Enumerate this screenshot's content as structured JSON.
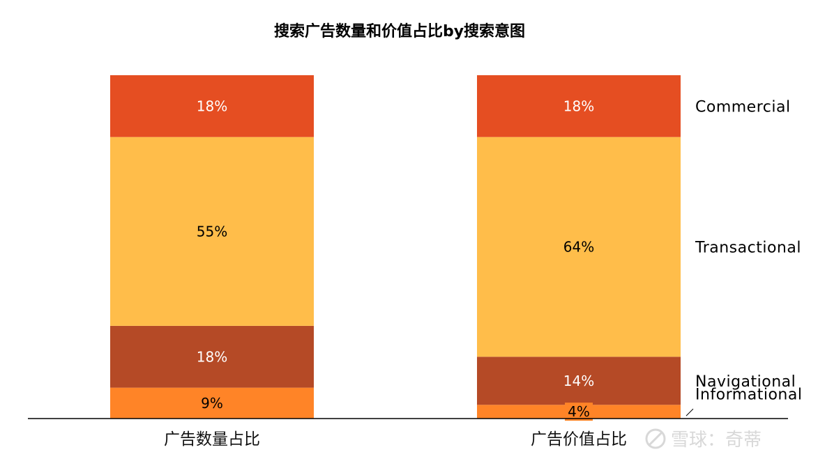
{
  "chart_data": {
    "type": "bar",
    "stacked": true,
    "normalized": true,
    "title": "搜索广告数量和价值占比by搜索意图",
    "categories": [
      "广告数量占比",
      "广告价值占比"
    ],
    "series": [
      {
        "name": "Informational",
        "values": [
          9,
          4
        ],
        "labels": [
          "9%",
          "4%"
        ],
        "color": "#FF8427",
        "label_color": "#000000"
      },
      {
        "name": "Navigational",
        "values": [
          18,
          14
        ],
        "labels": [
          "18%",
          "14%"
        ],
        "color": "#B54A26",
        "label_color": "#FFFFFF"
      },
      {
        "name": "Transactional",
        "values": [
          55,
          64
        ],
        "labels": [
          "55%",
          "64%"
        ],
        "color": "#FFBD4A",
        "label_color": "#000000"
      },
      {
        "name": "Commercial",
        "values": [
          18,
          18
        ],
        "labels": [
          "18%",
          "18%"
        ],
        "color": "#E54E22",
        "label_color": "#FFFFFF"
      }
    ],
    "legend_position": "right",
    "grid": false
  },
  "watermark": {
    "text": "雪球：奇蒂"
  }
}
